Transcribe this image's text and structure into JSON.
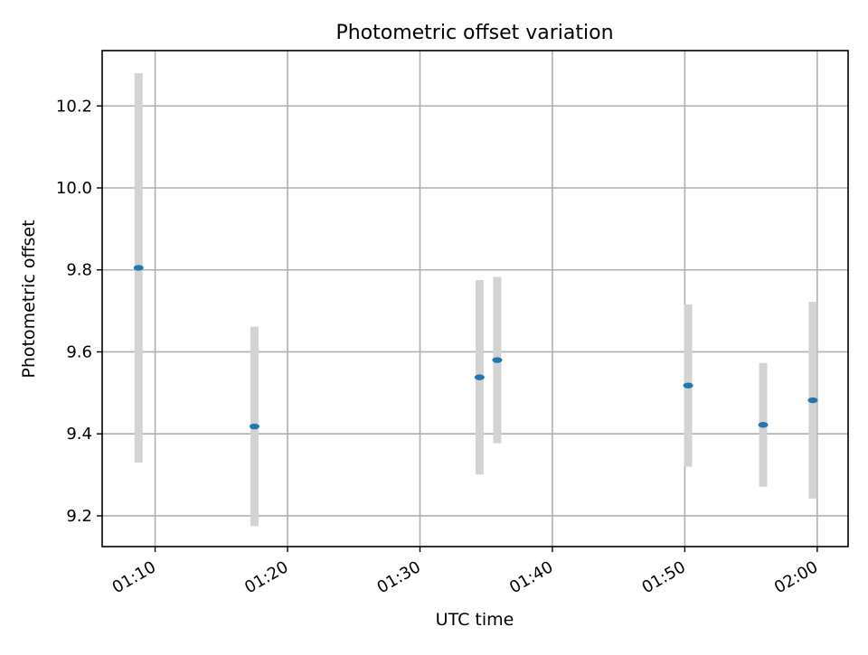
{
  "chart_data": {
    "type": "scatter",
    "title": "Photometric offset variation",
    "xlabel": "UTC time",
    "ylabel": "Photometric offset",
    "x_unit": "minutes",
    "xlim": [
      "01:06:00",
      "02:02:20"
    ],
    "ylim": [
      9.125,
      10.335
    ],
    "x_ticks": [
      "01:10",
      "01:20",
      "01:30",
      "01:40",
      "01:50",
      "02:00"
    ],
    "y_ticks": [
      "9.2",
      "9.4",
      "9.6",
      "9.8",
      "10.0",
      "10.2"
    ],
    "grid": true,
    "series": [
      {
        "marker_color": "#1f77b4",
        "errorbar_color": "#d3d3d3",
        "points": [
          {
            "x": "01:08:45",
            "y": 9.805,
            "yerr": 0.475
          },
          {
            "x": "01:17:30",
            "y": 9.418,
            "yerr": 0.243
          },
          {
            "x": "01:34:30",
            "y": 9.538,
            "yerr": 0.237
          },
          {
            "x": "01:35:50",
            "y": 9.58,
            "yerr": 0.203
          },
          {
            "x": "01:50:15",
            "y": 9.518,
            "yerr": 0.198
          },
          {
            "x": "01:55:55",
            "y": 9.422,
            "yerr": 0.151
          },
          {
            "x": "01:59:40",
            "y": 9.482,
            "yerr": 0.24
          }
        ]
      }
    ]
  }
}
